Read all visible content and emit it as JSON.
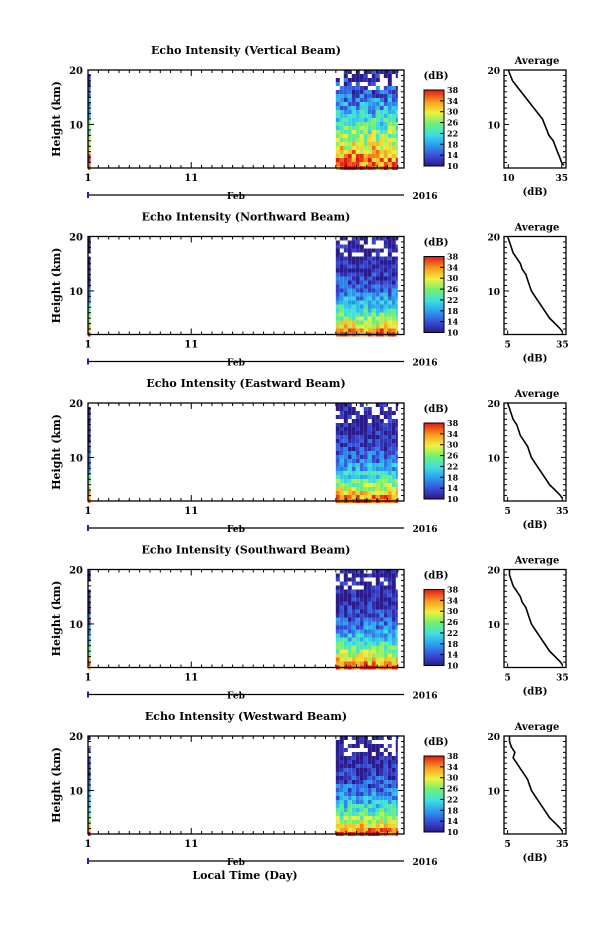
{
  "figure": {
    "xlabel": "Local Time (Day)",
    "month_label": "Feb",
    "year_label": "2016",
    "colorbar_unit": "(dB)",
    "average_title": "Average",
    "average_xlabel": "(dB)"
  },
  "chart_data": [
    {
      "type": "heatmap",
      "title": "Echo Intensity (Vertical Beam)",
      "ylabel": "Height (km)",
      "x_ticks": [
        "1",
        "11"
      ],
      "y_ticks": [
        "10",
        "20"
      ],
      "ylim": [
        2,
        20
      ],
      "data_segments_day": [
        [
          1.0,
          1.25
        ],
        [
          25.0,
          31.0
        ]
      ],
      "colorbar": {
        "label": "(dB)",
        "ticks": [
          "10",
          "14",
          "18",
          "22",
          "26",
          "30",
          "34",
          "38"
        ],
        "range": [
          10,
          38
        ]
      },
      "average_profile": {
        "title": "Average",
        "xlabel": "(dB)",
        "xticks": [
          "10",
          "35"
        ],
        "yticks": [
          "10",
          "20"
        ],
        "xlim": [
          8,
          37
        ],
        "height_km": [
          20,
          19,
          18,
          17,
          16,
          15,
          14,
          13,
          12,
          11,
          10,
          9,
          8,
          7,
          6,
          5,
          4,
          3,
          2.5
        ],
        "db": [
          10,
          11,
          12,
          14,
          16,
          18,
          20,
          22,
          24,
          26,
          27,
          28,
          29,
          31,
          32,
          33,
          34,
          35,
          36
        ]
      }
    },
    {
      "type": "heatmap",
      "title": "Echo Intensity (Northward Beam)",
      "ylabel": "Height (km)",
      "x_ticks": [
        "1",
        "11"
      ],
      "y_ticks": [
        "10",
        "20"
      ],
      "ylim": [
        2,
        20
      ],
      "data_segments_day": [
        [
          1.0,
          1.25
        ],
        [
          25.0,
          31.0
        ]
      ],
      "colorbar": {
        "label": "(dB)",
        "ticks": [
          "10",
          "14",
          "18",
          "22",
          "26",
          "30",
          "34",
          "38"
        ],
        "range": [
          10,
          38
        ]
      },
      "average_profile": {
        "title": "Average",
        "xlabel": "(dB)",
        "xticks": [
          "5",
          "35"
        ],
        "yticks": [
          "10",
          "20"
        ],
        "xlim": [
          3,
          37
        ],
        "height_km": [
          20,
          19,
          18,
          17,
          16,
          15,
          14,
          13,
          12,
          11,
          10,
          9,
          8,
          7,
          6,
          5,
          4,
          3,
          2.5
        ],
        "db": [
          5,
          6,
          7,
          8,
          10,
          12,
          13,
          15,
          16,
          17,
          18,
          20,
          22,
          24,
          26,
          28,
          31,
          34,
          35
        ]
      }
    },
    {
      "type": "heatmap",
      "title": "Echo Intensity (Eastward Beam)",
      "ylabel": "Height (km)",
      "x_ticks": [
        "1",
        "11"
      ],
      "y_ticks": [
        "10",
        "20"
      ],
      "ylim": [
        2,
        20
      ],
      "data_segments_day": [
        [
          1.0,
          1.25
        ],
        [
          25.0,
          31.0
        ]
      ],
      "colorbar": {
        "label": "(dB)",
        "ticks": [
          "10",
          "14",
          "18",
          "22",
          "26",
          "30",
          "34",
          "38"
        ],
        "range": [
          10,
          38
        ]
      },
      "average_profile": {
        "title": "Average",
        "xlabel": "(dB)",
        "xticks": [
          "5",
          "35"
        ],
        "yticks": [
          "10",
          "20"
        ],
        "xlim": [
          3,
          37
        ],
        "height_km": [
          20,
          19,
          18,
          17,
          16,
          15,
          14,
          13,
          12,
          11,
          10,
          9,
          8,
          7,
          6,
          5,
          4,
          3,
          2.5
        ],
        "db": [
          5,
          6,
          7,
          8,
          10,
          11,
          12,
          14,
          16,
          17,
          18,
          20,
          22,
          24,
          26,
          28,
          31,
          34,
          35
        ]
      }
    },
    {
      "type": "heatmap",
      "title": "Echo Intensity (Southward Beam)",
      "ylabel": "Height (km)",
      "x_ticks": [
        "1",
        "11"
      ],
      "y_ticks": [
        "10",
        "20"
      ],
      "ylim": [
        2,
        20
      ],
      "data_segments_day": [
        [
          1.0,
          1.25
        ],
        [
          25.0,
          31.0
        ]
      ],
      "colorbar": {
        "label": "(dB)",
        "ticks": [
          "10",
          "14",
          "18",
          "22",
          "26",
          "30",
          "34",
          "38"
        ],
        "range": [
          10,
          38
        ]
      },
      "average_profile": {
        "title": "Average",
        "xlabel": "(dB)",
        "xticks": [
          "5",
          "35"
        ],
        "yticks": [
          "10",
          "20"
        ],
        "xlim": [
          3,
          37
        ],
        "height_km": [
          20,
          19,
          18,
          17,
          16,
          15,
          14,
          13,
          12,
          11,
          10,
          9,
          8,
          7,
          6,
          5,
          4,
          3,
          2.5
        ],
        "db": [
          6,
          6,
          7,
          8,
          10,
          12,
          13,
          15,
          16,
          17,
          18,
          20,
          22,
          24,
          26,
          28,
          31,
          34,
          35
        ]
      }
    },
    {
      "type": "heatmap",
      "title": "Echo Intensity (Westward Beam)",
      "ylabel": "Height (km)",
      "x_ticks": [
        "1",
        "11"
      ],
      "y_ticks": [
        "10",
        "20"
      ],
      "ylim": [
        2,
        20
      ],
      "data_segments_day": [
        [
          1.0,
          1.25
        ],
        [
          25.0,
          31.0
        ]
      ],
      "colorbar": {
        "label": "(dB)",
        "ticks": [
          "10",
          "14",
          "18",
          "22",
          "26",
          "30",
          "34",
          "38"
        ],
        "range": [
          10,
          38
        ]
      },
      "average_profile": {
        "title": "Average",
        "xlabel": "(dB)",
        "xticks": [
          "5",
          "35"
        ],
        "yticks": [
          "10",
          "20"
        ],
        "xlim": [
          3,
          37
        ],
        "height_km": [
          20,
          19,
          18,
          17,
          16,
          15,
          14,
          13,
          12,
          11,
          10,
          9,
          8,
          7,
          6,
          5,
          4,
          3,
          2.5
        ],
        "db": [
          6,
          6,
          7,
          9,
          8,
          10,
          12,
          14,
          16,
          17,
          18,
          20,
          22,
          24,
          26,
          28,
          31,
          34,
          35
        ]
      }
    }
  ]
}
